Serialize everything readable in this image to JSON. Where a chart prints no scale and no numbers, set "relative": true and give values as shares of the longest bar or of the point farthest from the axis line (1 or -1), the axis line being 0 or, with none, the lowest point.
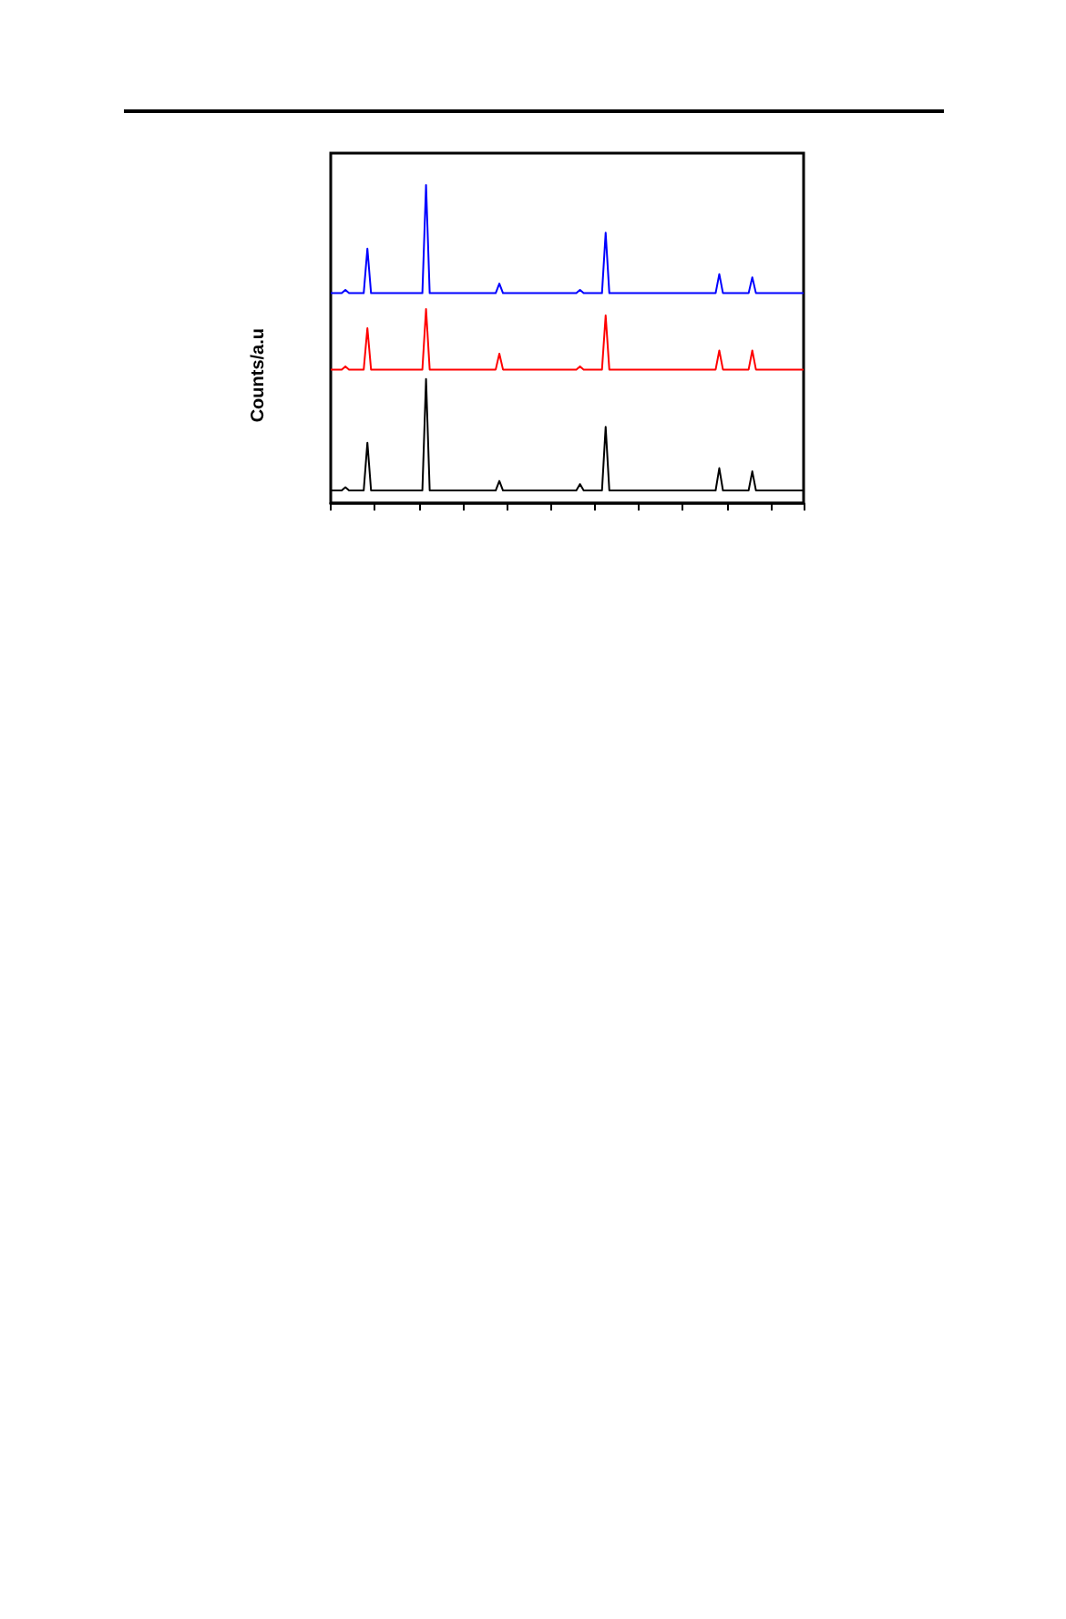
{
  "chart_data": {
    "type": "line",
    "ylabel": "Counts/a.u",
    "relative": true,
    "categories": [
      null,
      null,
      null,
      null,
      null,
      null,
      null,
      null,
      null,
      null,
      null,
      null,
      null,
      null,
      null,
      null,
      null,
      null,
      null,
      null,
      null,
      null,
      null,
      null,
      null,
      null,
      null,
      null,
      null,
      null,
      null,
      null,
      null,
      null,
      null,
      null,
      null,
      null,
      null,
      null,
      null,
      null,
      null,
      null,
      null,
      null,
      null,
      null,
      null,
      null,
      null,
      null,
      null,
      null,
      null,
      null,
      null,
      null,
      null,
      null,
      null,
      null,
      null,
      null,
      null,
      null,
      null,
      null,
      null,
      null,
      null,
      null,
      null,
      null,
      null,
      null,
      null,
      null,
      null,
      null,
      null,
      null,
      null,
      null,
      null,
      null,
      null,
      null,
      null,
      null,
      null,
      null,
      null,
      null,
      null,
      null,
      null,
      null,
      null,
      null,
      null,
      null,
      null,
      null,
      null,
      null,
      null,
      null,
      null,
      null,
      null,
      null,
      null,
      null,
      null,
      null,
      null,
      null,
      null,
      null,
      null,
      null,
      null,
      null,
      null,
      null,
      null,
      null,
      null,
      null
    ],
    "series": [
      {
        "color": "#000000",
        "values": [
          0.04,
          0.04,
          0.04,
          0.04,
          0.05,
          0.04,
          0.04,
          0.04,
          0.04,
          0.04,
          0.19,
          0.04,
          0.04,
          0.04,
          0.04,
          0.04,
          0.04,
          0.04,
          0.04,
          0.04,
          0.04,
          0.04,
          0.04,
          0.04,
          0.04,
          0.04,
          0.39,
          0.04,
          0.04,
          0.04,
          0.04,
          0.04,
          0.04,
          0.04,
          0.04,
          0.04,
          0.04,
          0.04,
          0.04,
          0.04,
          0.04,
          0.04,
          0.04,
          0.04,
          0.04,
          0.04,
          0.07,
          0.04,
          0.04,
          0.04,
          0.04,
          0.04,
          0.04,
          0.04,
          0.04,
          0.04,
          0.04,
          0.04,
          0.04,
          0.04,
          0.04,
          0.04,
          0.04,
          0.04,
          0.04,
          0.04,
          0.04,
          0.04,
          0.06,
          0.04,
          0.04,
          0.04,
          0.04,
          0.04,
          0.04,
          0.24,
          0.04,
          0.04,
          0.04,
          0.04,
          0.04,
          0.04,
          0.04,
          0.04,
          0.04,
          0.04,
          0.04,
          0.04,
          0.04,
          0.04,
          0.04,
          0.04,
          0.04,
          0.04,
          0.04,
          0.04,
          0.04,
          0.04,
          0.04,
          0.04,
          0.04,
          0.04,
          0.04,
          0.04,
          0.04,
          0.04,
          0.11,
          0.04,
          0.04,
          0.04,
          0.04,
          0.04,
          0.04,
          0.04,
          0.04,
          0.1,
          0.04,
          0.04,
          0.04,
          0.04,
          0.04,
          0.04,
          0.04,
          0.04,
          0.04,
          0.04,
          0.04,
          0.04,
          0.04,
          0.04
        ]
      },
      {
        "color": "#ff0000",
        "values": [
          0.42,
          0.42,
          0.42,
          0.42,
          0.43,
          0.42,
          0.42,
          0.42,
          0.42,
          0.42,
          0.55,
          0.42,
          0.42,
          0.42,
          0.42,
          0.42,
          0.42,
          0.42,
          0.42,
          0.42,
          0.42,
          0.42,
          0.42,
          0.42,
          0.42,
          0.42,
          0.61,
          0.42,
          0.42,
          0.42,
          0.42,
          0.42,
          0.42,
          0.42,
          0.42,
          0.42,
          0.42,
          0.42,
          0.42,
          0.42,
          0.42,
          0.42,
          0.42,
          0.42,
          0.42,
          0.42,
          0.47,
          0.42,
          0.42,
          0.42,
          0.42,
          0.42,
          0.42,
          0.42,
          0.42,
          0.42,
          0.42,
          0.42,
          0.42,
          0.42,
          0.42,
          0.42,
          0.42,
          0.42,
          0.42,
          0.42,
          0.42,
          0.42,
          0.43,
          0.42,
          0.42,
          0.42,
          0.42,
          0.42,
          0.42,
          0.59,
          0.42,
          0.42,
          0.42,
          0.42,
          0.42,
          0.42,
          0.42,
          0.42,
          0.42,
          0.42,
          0.42,
          0.42,
          0.42,
          0.42,
          0.42,
          0.42,
          0.42,
          0.42,
          0.42,
          0.42,
          0.42,
          0.42,
          0.42,
          0.42,
          0.42,
          0.42,
          0.42,
          0.42,
          0.42,
          0.42,
          0.48,
          0.42,
          0.42,
          0.42,
          0.42,
          0.42,
          0.42,
          0.42,
          0.42,
          0.48,
          0.42,
          0.42,
          0.42,
          0.42,
          0.42,
          0.42,
          0.42,
          0.42,
          0.42,
          0.42,
          0.42,
          0.42,
          0.42,
          0.42
        ]
      },
      {
        "color": "#0000ff",
        "values": [
          0.66,
          0.66,
          0.66,
          0.66,
          0.67,
          0.66,
          0.66,
          0.66,
          0.66,
          0.66,
          0.8,
          0.66,
          0.66,
          0.66,
          0.66,
          0.66,
          0.66,
          0.66,
          0.66,
          0.66,
          0.66,
          0.66,
          0.66,
          0.66,
          0.66,
          0.66,
          1,
          0.66,
          0.66,
          0.66,
          0.66,
          0.66,
          0.66,
          0.66,
          0.66,
          0.66,
          0.66,
          0.66,
          0.66,
          0.66,
          0.66,
          0.66,
          0.66,
          0.66,
          0.66,
          0.66,
          0.69,
          0.66,
          0.66,
          0.66,
          0.66,
          0.66,
          0.66,
          0.66,
          0.66,
          0.66,
          0.66,
          0.66,
          0.66,
          0.66,
          0.66,
          0.66,
          0.66,
          0.66,
          0.66,
          0.66,
          0.66,
          0.66,
          0.67,
          0.66,
          0.66,
          0.66,
          0.66,
          0.66,
          0.66,
          0.85,
          0.66,
          0.66,
          0.66,
          0.66,
          0.66,
          0.66,
          0.66,
          0.66,
          0.66,
          0.66,
          0.66,
          0.66,
          0.66,
          0.66,
          0.66,
          0.66,
          0.66,
          0.66,
          0.66,
          0.66,
          0.66,
          0.66,
          0.66,
          0.66,
          0.66,
          0.66,
          0.66,
          0.66,
          0.66,
          0.66,
          0.72,
          0.66,
          0.66,
          0.66,
          0.66,
          0.66,
          0.66,
          0.66,
          0.66,
          0.71,
          0.66,
          0.66,
          0.66,
          0.66,
          0.66,
          0.66,
          0.66,
          0.66,
          0.66,
          0.66,
          0.66,
          0.66,
          0.66,
          0.66
        ]
      }
    ]
  }
}
